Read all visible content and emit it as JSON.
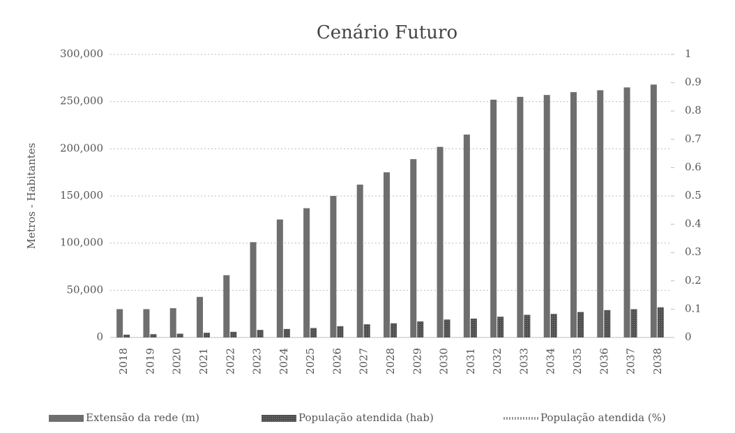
{
  "chart_data": {
    "type": "bar",
    "title": "Cenário Futuro",
    "y_label": "Metros - Habitantes",
    "categories": [
      "2018",
      "2019",
      "2020",
      "2021",
      "2022",
      "2023",
      "2024",
      "2025",
      "2026",
      "2027",
      "2028",
      "2029",
      "2030",
      "2031",
      "2032",
      "2033",
      "2034",
      "2035",
      "2036",
      "2037",
      "2038"
    ],
    "series": [
      {
        "name": "Extensão da rede (m)",
        "color": "#6e6e6e",
        "values": [
          30000,
          30000,
          31000,
          43000,
          66000,
          101000,
          125000,
          137000,
          150000,
          162000,
          175000,
          189000,
          202000,
          215000,
          252000,
          255000,
          257000,
          260000,
          262000,
          265000,
          268000
        ]
      },
      {
        "name": "População atendida (hab)",
        "color": "#4f4f4f",
        "values": [
          3000,
          3500,
          4000,
          5000,
          6000,
          8000,
          9000,
          10000,
          12000,
          14000,
          15000,
          17000,
          19000,
          20000,
          22000,
          24000,
          25000,
          27000,
          29000,
          30000,
          32000
        ]
      },
      {
        "name": "População atendida (%)",
        "color": "#999999",
        "axis": "y2",
        "type": "line",
        "values": [
          null,
          null,
          null,
          null,
          null,
          null,
          null,
          null,
          null,
          null,
          null,
          null,
          null,
          null,
          null,
          null,
          null,
          null,
          null,
          null,
          null
        ]
      }
    ],
    "ylim": [
      0,
      300000
    ],
    "yticks": [
      0,
      {
        "value": 50000,
        "label": "50,000"
      },
      {
        "value": 100000,
        "label": "100,000"
      },
      {
        "value": 150000,
        "label": "150,000"
      },
      {
        "value": 200000,
        "label": "200,000"
      },
      {
        "value": 250000,
        "label": "250,000"
      },
      {
        "value": 300000,
        "label": "300,000"
      }
    ],
    "y2lim": [
      0,
      1
    ],
    "y2ticks": [
      0,
      0.1,
      0.2,
      0.3,
      0.4,
      0.5,
      0.6,
      0.7,
      0.8,
      0.9,
      1
    ],
    "grid": true,
    "legend": "bottom"
  }
}
